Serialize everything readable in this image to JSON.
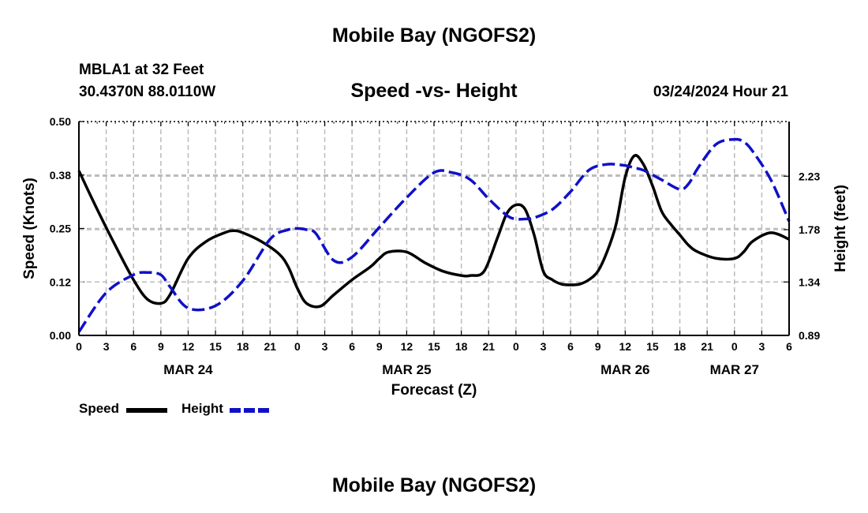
{
  "header": {
    "title": "Mobile Bay (NGOFS2)",
    "station": "MBLA1 at 32 Feet",
    "coordinates": "30.4370N  88.0110W",
    "subtitle": "Speed -vs- Height",
    "datetime": "03/24/2024 Hour 21"
  },
  "footer": {
    "title": "Mobile Bay (NGOFS2)"
  },
  "legend": {
    "speed_label": "Speed",
    "height_label": "Height"
  },
  "colors": {
    "speed": "#000000",
    "height": "#1010c8",
    "grid": "#bbbbbb"
  },
  "chart_data": {
    "type": "line",
    "title": "Speed -vs- Height",
    "xlabel": "Forecast (Z)",
    "ylabel": "Speed (Knots)",
    "y2label": "Height (feet)",
    "x_unit": "hours from 03/24 00Z",
    "xlim": [
      0,
      78
    ],
    "ylim": [
      0.0,
      0.5
    ],
    "y2lim": [
      0.89,
      2.69
    ],
    "x_tick_labels": [
      "0",
      "3",
      "6",
      "9",
      "12",
      "15",
      "18",
      "21",
      "0",
      "3",
      "6",
      "9",
      "12",
      "15",
      "18",
      "21",
      "0",
      "3",
      "6",
      "9",
      "12",
      "15",
      "18",
      "21",
      "0",
      "3",
      "6"
    ],
    "date_labels": [
      {
        "label": "MAR 24",
        "hour": 12
      },
      {
        "label": "MAR 25",
        "hour": 36
      },
      {
        "label": "MAR 26",
        "hour": 60
      },
      {
        "label": "MAR 27",
        "hour": 72
      }
    ],
    "y_ticks": [
      0.0,
      0.125,
      0.25,
      0.375,
      0.5
    ],
    "y_tick_labels": [
      "0.00",
      "0.12",
      "0.25",
      "0.38",
      "0.50"
    ],
    "y2_ticks": [
      0.89,
      1.34,
      1.78,
      2.23
    ],
    "y2_tick_labels": [
      "0.89",
      "1.34",
      "1.78",
      "2.23"
    ],
    "series": [
      {
        "name": "Speed",
        "axis": "left",
        "style": "solid",
        "x": [
          0,
          2,
          4,
          6,
          7.5,
          9,
          10,
          12,
          14,
          16,
          17,
          18,
          20,
          22,
          23,
          24,
          25,
          26.5,
          28,
          30,
          32,
          33,
          34,
          36,
          38,
          40,
          42,
          43,
          44.5,
          46,
          47,
          48,
          49,
          50,
          51,
          52,
          53,
          54,
          55,
          56,
          57,
          58,
          59,
          60,
          61,
          62,
          63,
          64,
          65,
          66,
          67,
          68,
          70,
          72,
          73,
          74,
          76,
          78
        ],
        "values": [
          0.385,
          0.295,
          0.21,
          0.13,
          0.085,
          0.075,
          0.095,
          0.18,
          0.22,
          0.24,
          0.245,
          0.24,
          0.22,
          0.19,
          0.16,
          0.11,
          0.075,
          0.068,
          0.095,
          0.13,
          0.16,
          0.18,
          0.195,
          0.195,
          0.17,
          0.15,
          0.14,
          0.14,
          0.15,
          0.23,
          0.285,
          0.305,
          0.295,
          0.235,
          0.15,
          0.13,
          0.12,
          0.118,
          0.12,
          0.13,
          0.15,
          0.195,
          0.26,
          0.37,
          0.42,
          0.4,
          0.35,
          0.29,
          0.26,
          0.235,
          0.21,
          0.195,
          0.18,
          0.18,
          0.195,
          0.22,
          0.24,
          0.225
        ]
      },
      {
        "name": "Height",
        "axis": "right",
        "style": "dashed",
        "x": [
          0,
          3,
          6,
          7.5,
          9,
          10,
          12,
          15,
          18,
          21,
          23,
          24,
          25,
          26,
          28,
          30,
          33,
          36,
          39,
          41,
          43,
          45,
          47,
          48,
          49,
          50,
          52,
          54,
          56,
          58,
          60,
          61,
          62,
          64,
          66,
          67,
          68,
          70,
          72,
          73,
          74,
          76,
          78
        ],
        "values": [
          0.92,
          1.25,
          1.4,
          1.42,
          1.4,
          1.3,
          1.12,
          1.14,
          1.35,
          1.7,
          1.78,
          1.79,
          1.78,
          1.75,
          1.52,
          1.55,
          1.8,
          2.05,
          2.26,
          2.26,
          2.2,
          2.04,
          1.9,
          1.87,
          1.87,
          1.88,
          1.95,
          2.1,
          2.28,
          2.33,
          2.32,
          2.3,
          2.28,
          2.2,
          2.12,
          2.17,
          2.3,
          2.5,
          2.54,
          2.52,
          2.44,
          2.2,
          1.85
        ]
      }
    ]
  }
}
